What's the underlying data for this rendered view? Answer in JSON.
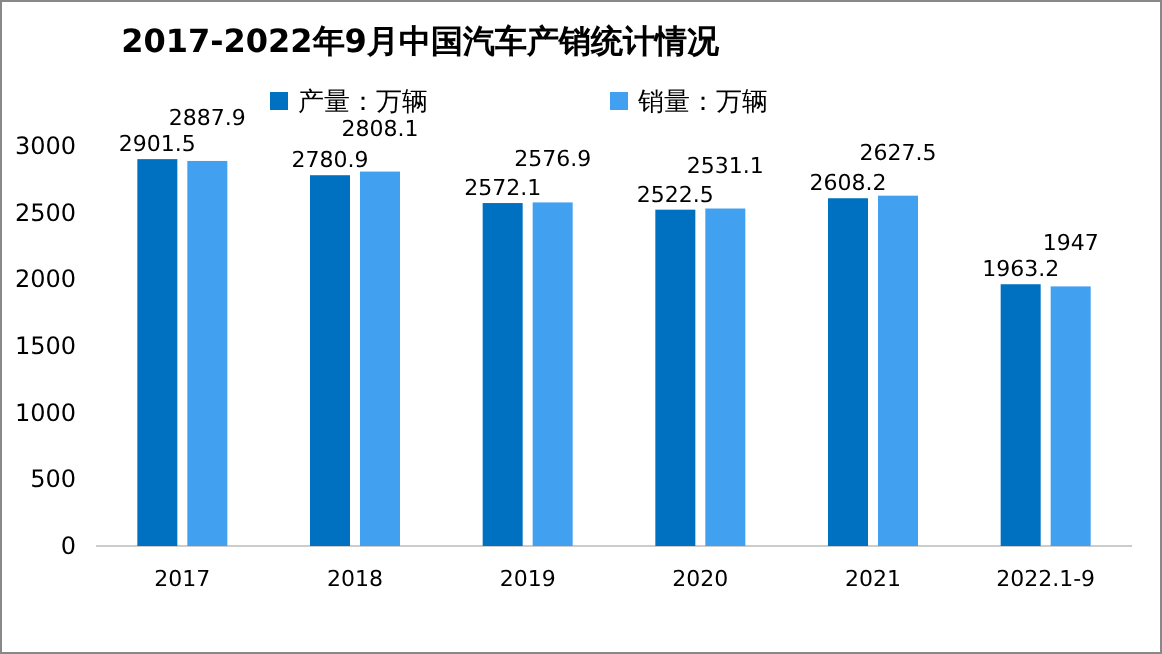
{
  "chart_data": {
    "type": "bar",
    "title": "2017-2022年9月中国汽车产销统计情况",
    "categories": [
      "2017",
      "2018",
      "2019",
      "2020",
      "2021",
      "2022.1-9"
    ],
    "series": [
      {
        "name": "产量：万辆",
        "color": "#0070c0",
        "values": [
          2901.5,
          2780.9,
          2572.1,
          2522.5,
          2608.2,
          1963.2
        ]
      },
      {
        "name": "销量：万辆",
        "color": "#42a0f0",
        "values": [
          2887.9,
          2808.1,
          2576.9,
          2531.1,
          2627.5,
          1947
        ]
      }
    ],
    "ylim": [
      0,
      3000
    ],
    "yticks": [
      0,
      500,
      1000,
      1500,
      2000,
      2500,
      3000
    ],
    "data_labels": true,
    "legend": "top",
    "grid": false
  }
}
